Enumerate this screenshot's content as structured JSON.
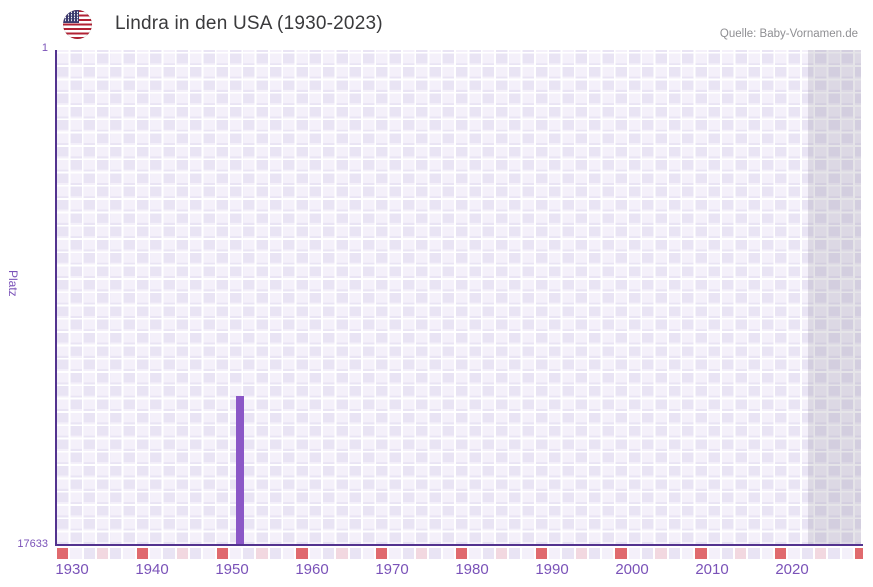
{
  "header": {
    "title": "Lindra in den USA (1930-2023)",
    "source": "Quelle: Baby-Vornamen.de",
    "flag_icon": "us-flag-icon"
  },
  "y_axis": {
    "label": "Platz",
    "top_tick": "1",
    "bottom_tick": "17633"
  },
  "x_axis": {
    "ticks": [
      "1930",
      "1940",
      "1950",
      "1960",
      "1970",
      "1980",
      "1990",
      "2000",
      "2010",
      "2020"
    ]
  },
  "colors": {
    "bar": "#8b57c7",
    "axis": "#53338f",
    "tick": "#7a52b8",
    "checker_light": "#f4f0fa",
    "checker_dark": "#e9e4f4",
    "marker_red": "#e06a6e",
    "marker_pink": "#f2d8e0",
    "overlay": "rgba(125,118,140,0.20)"
  },
  "chart_data": {
    "type": "bar",
    "title": "Lindra in den USA (1930-2023)",
    "xlabel": "",
    "ylabel": "Platz",
    "x_range": [
      1930,
      2023
    ],
    "y_range": [
      1,
      17633
    ],
    "y_inverted": true,
    "grid": "checkerboard",
    "legend": "none",
    "points": [
      {
        "x": 1951,
        "y": 12350
      }
    ],
    "shaded_region_years": [
      2022,
      2023
    ]
  }
}
